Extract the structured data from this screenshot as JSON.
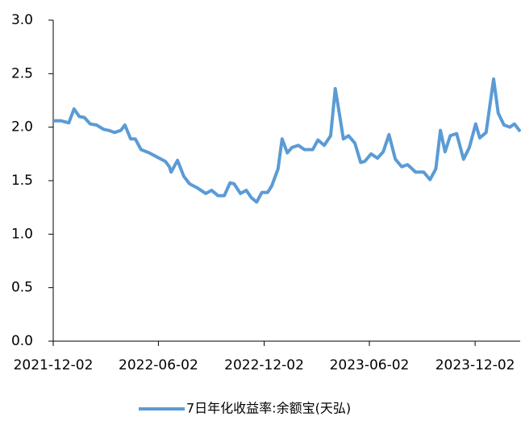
{
  "chart_data": {
    "type": "line",
    "x": [
      "2021-12-02",
      "2021-12-15",
      "2021-12-29",
      "2022-01-07",
      "2022-01-16",
      "2022-01-25",
      "2022-02-04",
      "2022-02-15",
      "2022-02-27",
      "2022-03-08",
      "2022-03-18",
      "2022-03-29",
      "2022-04-05",
      "2022-04-15",
      "2022-04-23",
      "2022-05-03",
      "2022-05-17",
      "2022-05-31",
      "2022-06-14",
      "2022-06-21",
      "2022-06-24",
      "2022-07-05",
      "2022-07-16",
      "2022-07-26",
      "2022-08-09",
      "2022-08-23",
      "2022-09-02",
      "2022-09-13",
      "2022-09-24",
      "2022-10-04",
      "2022-10-11",
      "2022-10-22",
      "2022-11-01",
      "2022-11-10",
      "2022-11-19",
      "2022-11-28",
      "2022-12-08",
      "2022-12-15",
      "2022-12-26",
      "2023-01-02",
      "2023-01-11",
      "2023-01-19",
      "2023-01-30",
      "2023-02-10",
      "2023-02-24",
      "2023-03-05",
      "2023-03-16",
      "2023-03-27",
      "2023-04-04",
      "2023-04-11",
      "2023-04-18",
      "2023-04-27",
      "2023-05-08",
      "2023-05-18",
      "2023-05-25",
      "2023-06-05",
      "2023-06-16",
      "2023-06-26",
      "2023-07-06",
      "2023-07-17",
      "2023-07-28",
      "2023-08-07",
      "2023-08-21",
      "2023-09-04",
      "2023-09-15",
      "2023-09-25",
      "2023-10-03",
      "2023-10-11",
      "2023-10-20",
      "2023-10-31",
      "2023-11-12",
      "2023-11-22",
      "2023-12-03",
      "2023-12-10",
      "2023-12-21",
      "2024-01-03",
      "2024-01-11",
      "2024-01-21",
      "2024-01-31",
      "2024-02-08",
      "2024-02-18"
    ],
    "series": [
      {
        "name": "7日年化收益率:余额宝(天弘)",
        "color": "#5b9bd5",
        "values": [
          2.06,
          2.06,
          2.04,
          2.17,
          2.1,
          2.09,
          2.03,
          2.02,
          1.98,
          1.97,
          1.95,
          1.97,
          2.02,
          1.89,
          1.89,
          1.79,
          1.76,
          1.72,
          1.68,
          1.63,
          1.58,
          1.69,
          1.54,
          1.47,
          1.43,
          1.38,
          1.41,
          1.36,
          1.36,
          1.48,
          1.47,
          1.38,
          1.41,
          1.34,
          1.3,
          1.39,
          1.39,
          1.45,
          1.61,
          1.89,
          1.76,
          1.81,
          1.83,
          1.79,
          1.79,
          1.88,
          1.83,
          1.92,
          2.36,
          2.13,
          1.89,
          1.92,
          1.85,
          1.67,
          1.68,
          1.75,
          1.71,
          1.77,
          1.93,
          1.7,
          1.63,
          1.65,
          1.58,
          1.58,
          1.51,
          1.61,
          1.97,
          1.77,
          1.92,
          1.94,
          1.7,
          1.81,
          2.03,
          1.9,
          1.95,
          2.45,
          2.13,
          2.02,
          2.0,
          2.03,
          1.96
        ]
      }
    ],
    "xlim": [
      "2021-12-02",
      "2024-02-18"
    ],
    "xticks": [
      "2021-12-02",
      "2022-06-02",
      "2022-12-02",
      "2023-06-02",
      "2023-12-02"
    ],
    "ylim": [
      0,
      3
    ],
    "yticks": [
      {
        "value": 0,
        "label": "0.0"
      },
      {
        "value": 0.5,
        "label": "0.5"
      },
      {
        "value": 1,
        "label": "1.0"
      },
      {
        "value": 1.5,
        "label": "1.5"
      },
      {
        "value": 2,
        "label": "2.0"
      },
      {
        "value": 2.5,
        "label": "2.5"
      },
      {
        "value": 3,
        "label": "3.0"
      }
    ]
  }
}
